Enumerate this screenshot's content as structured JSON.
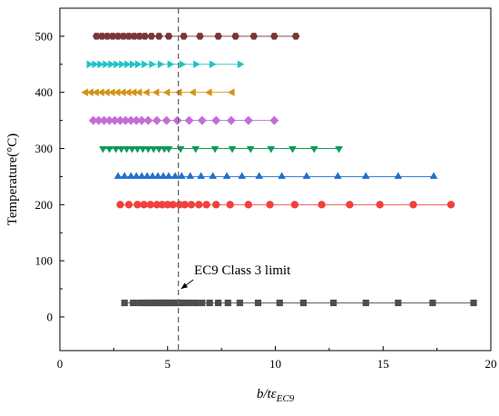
{
  "chart_data": {
    "type": "scatter",
    "xlabel_main": "b/tε",
    "xlabel_sub": "EC9",
    "ylabel": "Temperature(°C)",
    "xlim": [
      0,
      20
    ],
    "ylim": [
      -60,
      550
    ],
    "xticks": [
      0,
      5,
      10,
      15,
      20
    ],
    "yticks": [
      0,
      100,
      200,
      300,
      400,
      500
    ],
    "grid": false,
    "annotation": {
      "text": "EC9 Class 3 limit",
      "x_line": 5.5
    },
    "series": [
      {
        "y": 25,
        "marker": "square",
        "color": "#4d4d4d",
        "x": [
          3.0,
          3.4,
          3.7,
          3.9,
          4.05,
          4.2,
          4.35,
          4.5,
          4.6,
          4.7,
          4.8,
          4.9,
          5.0,
          5.1,
          5.25,
          5.4,
          5.55,
          5.75,
          6.0,
          6.3,
          6.6,
          6.95,
          7.35,
          7.8,
          8.35,
          9.2,
          10.2,
          11.3,
          12.7,
          14.2,
          15.7,
          17.3,
          19.2
        ]
      },
      {
        "y": 200,
        "marker": "circle",
        "color": "#f0413f",
        "x": [
          2.8,
          3.2,
          3.6,
          3.9,
          4.2,
          4.5,
          4.75,
          5.0,
          5.25,
          5.55,
          5.8,
          6.1,
          6.45,
          6.8,
          7.25,
          7.9,
          8.75,
          9.75,
          10.9,
          12.15,
          13.45,
          14.85,
          16.4,
          18.15
        ]
      },
      {
        "y": 250,
        "marker": "triangle-up",
        "color": "#1f6fd1",
        "x": [
          2.7,
          3.0,
          3.3,
          3.55,
          3.8,
          4.05,
          4.3,
          4.55,
          4.8,
          5.05,
          5.35,
          5.65,
          6.05,
          6.55,
          7.1,
          7.75,
          8.45,
          9.25,
          10.3,
          11.45,
          12.9,
          14.2,
          15.7,
          17.35
        ]
      },
      {
        "y": 300,
        "marker": "triangle-down",
        "color": "#109b5a",
        "x": [
          2.0,
          2.3,
          2.6,
          2.85,
          3.1,
          3.35,
          3.6,
          3.85,
          4.1,
          4.35,
          4.6,
          4.85,
          5.05,
          5.6,
          6.3,
          7.2,
          8.0,
          8.85,
          9.8,
          10.8,
          11.8,
          12.95
        ]
      },
      {
        "y": 350,
        "marker": "diamond",
        "color": "#c36ed6",
        "x": [
          1.55,
          1.8,
          2.05,
          2.3,
          2.55,
          2.8,
          3.05,
          3.3,
          3.55,
          3.8,
          4.1,
          4.5,
          4.95,
          5.45,
          6.0,
          6.6,
          7.25,
          7.95,
          8.75,
          9.95
        ]
      },
      {
        "y": 400,
        "marker": "triangle-left",
        "color": "#d49314",
        "x": [
          1.2,
          1.45,
          1.7,
          1.95,
          2.2,
          2.45,
          2.7,
          2.95,
          3.2,
          3.45,
          3.7,
          4.05,
          4.5,
          5.0,
          5.55,
          6.2,
          6.95,
          8.0
        ]
      },
      {
        "y": 450,
        "marker": "triangle-right",
        "color": "#1ec3c6",
        "x": [
          1.35,
          1.6,
          1.85,
          2.1,
          2.35,
          2.6,
          2.85,
          3.1,
          3.35,
          3.6,
          3.9,
          4.25,
          4.65,
          5.1,
          5.65,
          6.3,
          7.05,
          8.35
        ]
      },
      {
        "y": 500,
        "marker": "hexagon",
        "color": "#7a3535",
        "x": [
          1.7,
          1.95,
          2.2,
          2.45,
          2.7,
          2.95,
          3.2,
          3.45,
          3.7,
          3.95,
          4.25,
          4.6,
          5.05,
          5.75,
          6.5,
          7.35,
          8.15,
          9.0,
          9.95,
          10.95
        ]
      }
    ]
  }
}
